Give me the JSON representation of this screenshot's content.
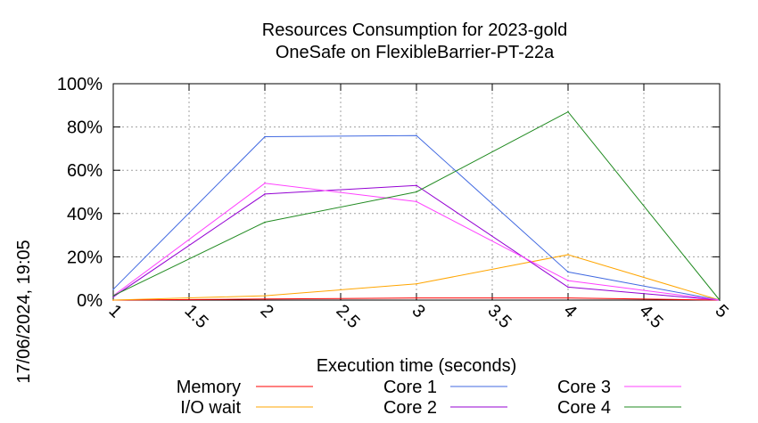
{
  "chart_data": {
    "type": "line",
    "title": "Resources Consumption for 2023-gold",
    "subtitle": "OneSafe on FlexibleBarrier-PT-22a",
    "xlabel": "Execution time (seconds)",
    "ylabel": "",
    "timestamp": "17/06/2024, 19:05",
    "xlim": [
      1,
      5
    ],
    "ylim": [
      0,
      100
    ],
    "x_ticks": [
      "1",
      "1.5",
      "2",
      "2.5",
      "3",
      "3.5",
      "4",
      "4.5",
      "5"
    ],
    "y_ticks": [
      "0%",
      "20%",
      "40%",
      "60%",
      "80%",
      "100%"
    ],
    "grid": true,
    "legend_position": "bottom",
    "x": [
      1,
      2,
      3,
      4,
      5
    ],
    "series": [
      {
        "name": "Memory",
        "color": "#ff0000",
        "values": [
          0,
          0.5,
          1,
          1,
          0
        ]
      },
      {
        "name": "I/O wait",
        "color": "#ffa500",
        "values": [
          0,
          2,
          7.5,
          21,
          0
        ]
      },
      {
        "name": "Core 1",
        "color": "#4169e1",
        "values": [
          5,
          75.5,
          76,
          13,
          0
        ]
      },
      {
        "name": "Core 2",
        "color": "#9400d3",
        "values": [
          1.5,
          49,
          53,
          6,
          0
        ]
      },
      {
        "name": "Core 3",
        "color": "#ff40ff",
        "values": [
          2,
          54,
          45.5,
          9,
          0
        ]
      },
      {
        "name": "Core 4",
        "color": "#228b22",
        "values": [
          2,
          36,
          50,
          87,
          0
        ]
      }
    ]
  }
}
